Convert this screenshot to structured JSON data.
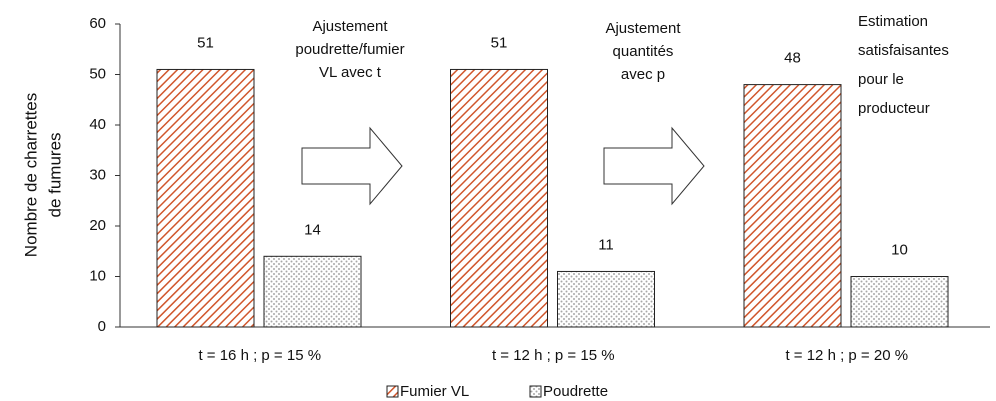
{
  "chart_data": {
    "type": "bar",
    "ylabel": [
      "Nombre de  charrettes",
      "de fumures"
    ],
    "categories": [
      "t = 16 h ; p = 15 %",
      "t = 12 h ; p = 15 %",
      "t = 12 h ; p = 20 %"
    ],
    "series": [
      {
        "name": "Fumier VL",
        "color": "#d0562c",
        "values": [
          51,
          51,
          48
        ]
      },
      {
        "name": "Poudrette",
        "color": "#a8a8a8",
        "values": [
          14,
          11,
          10
        ]
      }
    ],
    "annotations": [
      [
        "Ajustement",
        "poudrette/fumier",
        "VL avec t"
      ],
      [
        "Ajustement",
        "quantités",
        "avec p"
      ],
      [
        "Estimation",
        "satisfaisantes",
        "pour le",
        "producteur"
      ]
    ],
    "ylim": [
      0,
      60
    ],
    "yticks": [
      0,
      10,
      20,
      30,
      40,
      50,
      60
    ],
    "grid": false,
    "legend": "bottom"
  }
}
